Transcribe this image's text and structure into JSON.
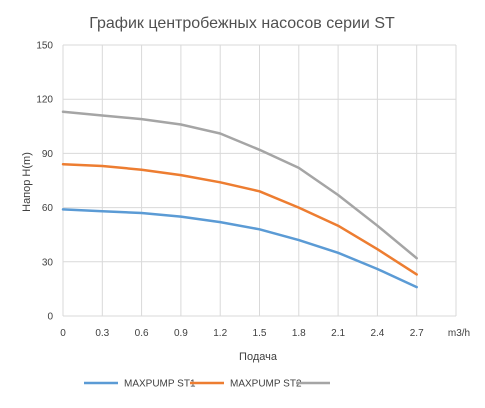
{
  "chart_data": {
    "type": "line",
    "title": "График центробежных насосов серии ST",
    "xlabel": "Подача",
    "ylabel": "Напор  H(m)",
    "x_unit": "m3/h",
    "x_ticks": [
      "0",
      "0.3",
      "0.6",
      "0.9",
      "1.2",
      "1.5",
      "1.8",
      "2.1",
      "2.4",
      "2.7"
    ],
    "y_ticks": [
      "0",
      "30",
      "60",
      "90",
      "120",
      "150"
    ],
    "xlim": [
      0,
      3.0
    ],
    "ylim": [
      0,
      150
    ],
    "grid": true,
    "legend": "bottom",
    "series": [
      {
        "name": "MAXPUMP ST1",
        "color": "#5b9bd5",
        "x": [
          0,
          0.3,
          0.6,
          0.9,
          1.2,
          1.5,
          1.8,
          2.1,
          2.4,
          2.7
        ],
        "y": [
          59,
          58,
          57,
          55,
          52,
          48,
          42,
          35,
          26,
          16
        ]
      },
      {
        "name": "MAXPUMP ST2",
        "color": "#ed7d31",
        "x": [
          0,
          0.3,
          0.6,
          0.9,
          1.2,
          1.5,
          1.8,
          2.1,
          2.4,
          2.7
        ],
        "y": [
          84,
          83,
          81,
          78,
          74,
          69,
          60,
          50,
          37,
          23
        ]
      },
      {
        "name": "",
        "color": "#a5a5a5",
        "x": [
          0,
          0.3,
          0.6,
          0.9,
          1.2,
          1.5,
          1.8,
          2.1,
          2.4,
          2.7
        ],
        "y": [
          113,
          111,
          109,
          106,
          101,
          92,
          82,
          67,
          50,
          32
        ]
      }
    ]
  }
}
